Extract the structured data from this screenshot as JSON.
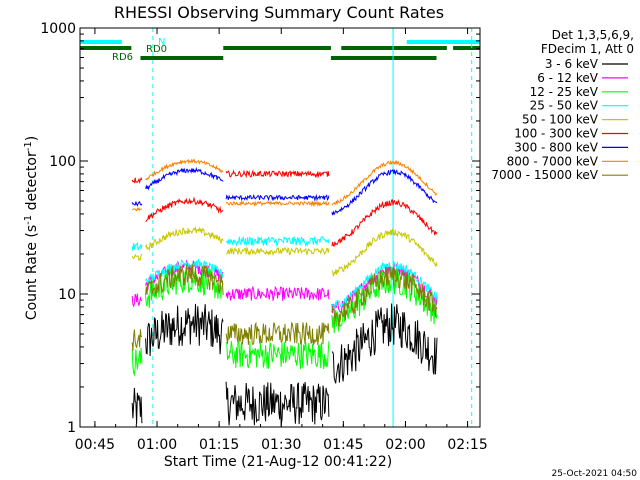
{
  "chart_data": {
    "type": "line",
    "title": "RHESSI Observing Summary Count Rates",
    "xlabel": "Start Time (21-Aug-12 00:41:22)",
    "ylabel": "Count Rate (s⁻¹ detector⁻¹)",
    "ylabel_main": "Count Rate (s",
    "ylabel_mid": " detector",
    "ylabel_end": ")",
    "ylabel_sup": "-1",
    "yscale": "log",
    "ylim": [
      1,
      1000
    ],
    "xlim_minutes": [
      41.4,
      138.0
    ],
    "x_ticks": [
      {
        "label": "00:45",
        "min": 45
      },
      {
        "label": "01:00",
        "min": 60
      },
      {
        "label": "01:15",
        "min": 75
      },
      {
        "label": "01:30",
        "min": 90
      },
      {
        "label": "01:45",
        "min": 105
      },
      {
        "label": "02:00",
        "min": 120
      },
      {
        "label": "02:15",
        "min": 135
      }
    ],
    "y_ticks": [
      {
        "label": "1",
        "value": 1
      },
      {
        "label": "10",
        "value": 10
      },
      {
        "label": "100",
        "value": 100
      },
      {
        "label": "1000",
        "value": 1000
      }
    ],
    "legend_header": [
      "Det 1,3,5,6,9,",
      "FDecim 1, Att 0"
    ],
    "series": [
      {
        "name": "3 - 6 keV",
        "color": "#000000",
        "flag": 1,
        "peak": 6,
        "lvl": 1.5,
        "noise": 0.38
      },
      {
        "name": "6 - 12 keV",
        "color": "#ff00ff",
        "flag": 1,
        "peak": 16,
        "lvl": 10,
        "noise": 0.12
      },
      {
        "name": "12 - 25 keV",
        "color": "#00ff00",
        "flag": 1,
        "peak": 13,
        "lvl": 3.5,
        "noise": 0.25
      },
      {
        "name": "25 - 50 keV",
        "color": "#00ffff",
        "flag": 1,
        "peak": 17,
        "lvl": 25,
        "noise": 0.08
      },
      {
        "name": "50 - 100 keV",
        "color": "#c8c800",
        "flag": 1,
        "peak": 30,
        "lvl": 21,
        "noise": 0.06
      },
      {
        "name": "100 - 300 keV",
        "color": "#ff0000",
        "flag": 1,
        "peak": 50,
        "lvl": 80,
        "noise": 0.05
      },
      {
        "name": "300 - 800 keV",
        "color": "#0000ff",
        "flag": 1,
        "peak": 85,
        "lvl": 53,
        "noise": 0.04
      },
      {
        "name": "800 - 7000 keV",
        "color": "#ff8000",
        "flag": 1,
        "peak": 100,
        "lvl": 48,
        "noise": 0.03
      },
      {
        "name": "7000 - 15000 keV",
        "color": "#808000",
        "flag": 1,
        "peak": 14,
        "lvl": 5,
        "noise": 0.2
      }
    ],
    "flag_bars": [
      {
        "label": "N",
        "color": "#00ffff",
        "segments": [
          [
            41.4,
            51.5
          ],
          [
            120.3,
            138.0
          ]
        ]
      },
      {
        "label": "RD0",
        "color": "#006400",
        "segments": [
          [
            41.4,
            53.8
          ],
          [
            76.0,
            102.0
          ],
          [
            104.5,
            130.0
          ],
          [
            131.5,
            138.0
          ]
        ]
      },
      {
        "label": "RD6",
        "color": "#006400",
        "segments": [
          [
            56.0,
            76.0
          ],
          [
            102.0,
            127.5
          ]
        ]
      }
    ],
    "night_lines": [
      {
        "min": 41.4,
        "style": "solid"
      },
      {
        "min": 59.0,
        "style": "dashed"
      },
      {
        "min": 117.0,
        "style": "solid"
      },
      {
        "min": 136.0,
        "style": "dashed"
      }
    ],
    "data_gaps_minutes": [
      [
        56.5,
        57.2
      ],
      [
        76.0,
        76.6
      ],
      [
        101.6,
        102.2
      ]
    ],
    "footer_date": "25-Oct-2021 04:50"
  }
}
